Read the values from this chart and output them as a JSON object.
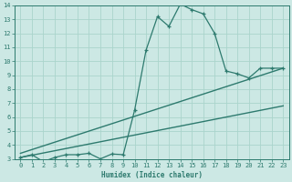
{
  "xlabel": "Humidex (Indice chaleur)",
  "bg_color": "#cce8e4",
  "line_color": "#2d7a6e",
  "grid_color": "#aad4cc",
  "curve_x": [
    0,
    1,
    2,
    3,
    4,
    5,
    6,
    7,
    8,
    9,
    10,
    11,
    12,
    13,
    14,
    15,
    16,
    17,
    18,
    19,
    20,
    21,
    22,
    23
  ],
  "curve_y": [
    3.1,
    3.3,
    2.8,
    3.1,
    3.3,
    3.3,
    3.4,
    3.0,
    3.35,
    3.3,
    6.5,
    10.8,
    13.2,
    12.5,
    14.1,
    13.7,
    13.4,
    12.0,
    9.3,
    9.1,
    8.8,
    9.5,
    9.5,
    9.5
  ],
  "line1_x": [
    0,
    23
  ],
  "line1_y": [
    3.1,
    6.8
  ],
  "line2_x": [
    0,
    23
  ],
  "line2_y": [
    3.4,
    9.5
  ],
  "xmin": -0.5,
  "xmax": 23.5,
  "ymin": 3,
  "ymax": 14,
  "yticks": [
    3,
    4,
    5,
    6,
    7,
    8,
    9,
    10,
    11,
    12,
    13,
    14
  ],
  "xticks": [
    0,
    1,
    2,
    3,
    4,
    5,
    6,
    7,
    8,
    9,
    10,
    11,
    12,
    13,
    14,
    15,
    16,
    17,
    18,
    19,
    20,
    21,
    22,
    23
  ]
}
